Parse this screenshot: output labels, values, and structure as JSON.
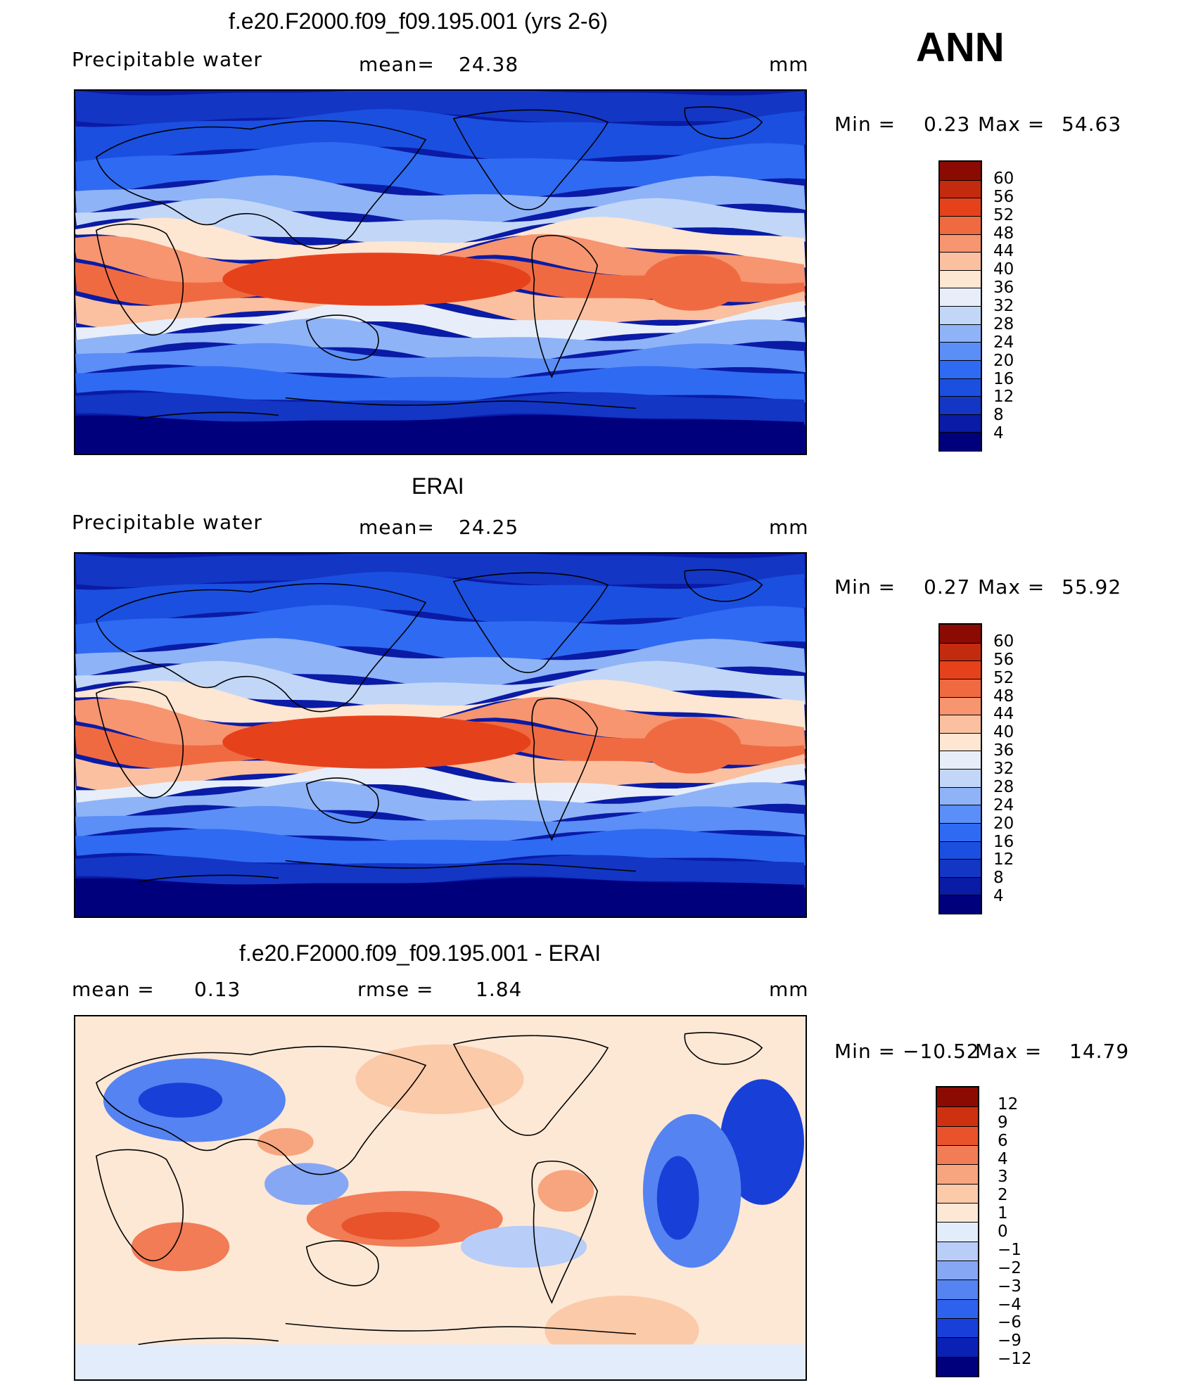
{
  "season": "ANN",
  "panels": [
    {
      "title": "f.e20.F2000.f09_f09.195.001 (yrs 2-6)",
      "left_label": "Precipitable  water",
      "stat_label": "mean=",
      "stat_value": "24.38",
      "units": "mm",
      "min_label": "Min  =",
      "min_value": "0.23",
      "max_label": "Max  =",
      "max_value": "54.63",
      "type": "abs",
      "colorbar_labels": [
        "60",
        "56",
        "52",
        "48",
        "44",
        "40",
        "36",
        "32",
        "28",
        "24",
        "20",
        "16",
        "12",
        "8",
        "4"
      ]
    },
    {
      "title": "ERAI",
      "left_label": "Precipitable  water",
      "stat_label": "mean=",
      "stat_value": "24.25",
      "units": "mm",
      "min_label": "Min  =",
      "min_value": "0.27",
      "max_label": "Max  =",
      "max_value": "55.92",
      "type": "abs",
      "colorbar_labels": [
        "60",
        "56",
        "52",
        "48",
        "44",
        "40",
        "36",
        "32",
        "28",
        "24",
        "20",
        "16",
        "12",
        "8",
        "4"
      ]
    },
    {
      "title": "f.e20.F2000.f09_f09.195.001 - ERAI",
      "left_label": "mean  =",
      "left_value": "0.13",
      "stat_label": "rmse  =",
      "stat_value": "1.84",
      "units": "mm",
      "min_label": "Min  =",
      "min_value": "−10.52",
      "max_label": "Max  =",
      "max_value": "14.79",
      "type": "diff",
      "colorbar_labels": [
        "12",
        "9",
        "6",
        "4",
        "3",
        "2",
        "1",
        "0",
        "−1",
        "−2",
        "−3",
        "−4",
        "−6",
        "−9",
        "−12"
      ]
    }
  ],
  "colors": {
    "abs_scale": [
      "#00007d",
      "#0a1ba6",
      "#1336c4",
      "#1b4fe0",
      "#2f6af2",
      "#5b8ef6",
      "#8fb3f7",
      "#c2d7f8",
      "#e7eef9",
      "#fde6d2",
      "#fbc0a0",
      "#f69570",
      "#f06a41",
      "#e5421c",
      "#c42a0e",
      "#8b0b02"
    ],
    "diff_scale": [
      "#00007d",
      "#0a21b5",
      "#1840d8",
      "#2e62ec",
      "#5583f1",
      "#86a7f4",
      "#b8cdf7",
      "#e3ecfa",
      "#fde8d6",
      "#fbcaa9",
      "#f7a57f",
      "#f17c56",
      "#e8532b",
      "#cd310f",
      "#8b0b02"
    ]
  }
}
